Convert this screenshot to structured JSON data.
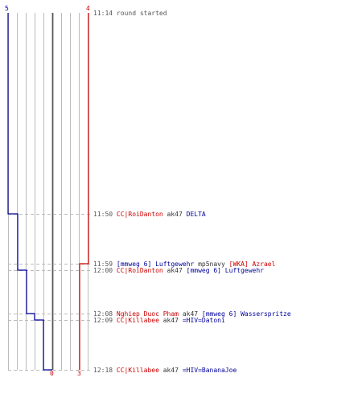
{
  "colors": {
    "red_team": "#cc0000",
    "blue_team": "#000099",
    "grid": "#bbbbbb",
    "center_line": "#555555",
    "guide": "#bbbbbb",
    "text": "#333333"
  },
  "score": {
    "blue_start": "5",
    "red_start": "4",
    "blue_end": "0",
    "red_end": "3"
  },
  "timeline": {
    "start_time": "11:14",
    "start_text": "round started",
    "end_time": "12:18"
  },
  "events": [
    {
      "time": "11:50",
      "killer": "CC|RoiDanton",
      "killer_team": "red",
      "weapon": "ak47",
      "victim": "DELTA",
      "victim_team": "blue",
      "blue_alive": 4,
      "red_alive": 4
    },
    {
      "time": "11:59",
      "killer": "[mmweg 6] Luftgewehr",
      "killer_team": "blue",
      "weapon": "mp5navy",
      "victim": "[WKA] Azrael",
      "victim_team": "red",
      "blue_alive": 4,
      "red_alive": 3
    },
    {
      "time": "12:00",
      "killer": "CC|RoiDanton",
      "killer_team": "red",
      "weapon": "ak47",
      "victim": "[mmweg 6] Luftgewehr",
      "victim_team": "blue",
      "blue_alive": 3,
      "red_alive": 3
    },
    {
      "time": "12:08",
      "killer": "Nghiep Duoc Pham",
      "killer_team": "red",
      "weapon": "ak47",
      "victim": "[mmweg 6] Wasserspritze",
      "victim_team": "blue",
      "blue_alive": 2,
      "red_alive": 3
    },
    {
      "time": "12:09",
      "killer": "CC|Killabee",
      "killer_team": "red",
      "weapon": "ak47",
      "victim": "=HIV=Datoni",
      "victim_team": "blue",
      "blue_alive": 1,
      "red_alive": 3
    },
    {
      "time": "12:18",
      "killer": "CC|Killabee",
      "killer_team": "red",
      "weapon": "ak47",
      "victim": "=HIV=BananaJoe",
      "victim_team": "blue",
      "blue_alive": 0,
      "red_alive": 3
    }
  ]
}
